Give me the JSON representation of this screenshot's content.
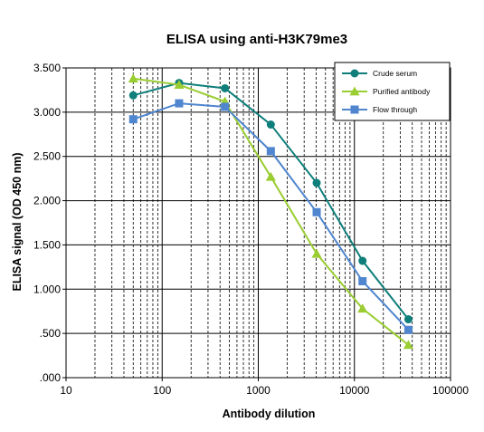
{
  "chart_data": {
    "type": "line",
    "title": "ELISA using anti-H3K79me3",
    "xlabel": "Antibody dilution",
    "ylabel": "ELISA signal (OD 450 nm)",
    "x_scale": "log",
    "xlim": [
      10,
      100000
    ],
    "ylim": [
      0,
      3.5
    ],
    "x_tick_values": [
      10,
      100,
      1000,
      10000,
      100000
    ],
    "x_tick_labels": [
      "10",
      "100",
      "1000",
      "10000",
      "100000"
    ],
    "y_tick_values": [
      0,
      0.5,
      1.0,
      1.5,
      2.0,
      2.5,
      3.0,
      3.5
    ],
    "y_tick_labels": [
      ".000",
      ".500",
      "1.000",
      "1.500",
      "2.000",
      "2.500",
      "3.000",
      "3.500"
    ],
    "grid": true,
    "legend_position": "top-right",
    "x": [
      50,
      150,
      450,
      1350,
      4050,
      12150,
      36450
    ],
    "series": [
      {
        "name": "Crude serum",
        "color": "#0f7f7b",
        "marker": "circle",
        "values": [
          3.19,
          3.33,
          3.27,
          2.86,
          2.2,
          1.32,
          0.66
        ]
      },
      {
        "name": "Purified antibody",
        "color": "#9acd32",
        "marker": "triangle",
        "values": [
          3.38,
          3.31,
          3.12,
          2.27,
          1.4,
          0.78,
          0.37
        ]
      },
      {
        "name": "Flow through",
        "color": "#4f86cf",
        "marker": "square",
        "values": [
          2.92,
          3.1,
          3.06,
          2.56,
          1.87,
          1.09,
          0.54
        ]
      }
    ]
  }
}
